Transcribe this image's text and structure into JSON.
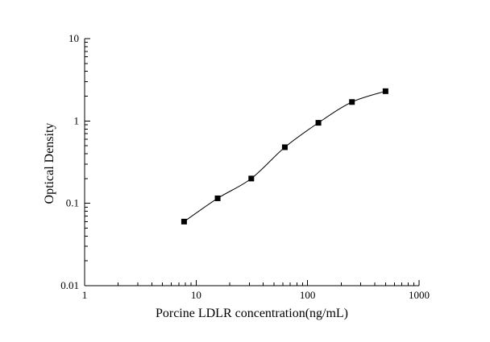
{
  "figure": {
    "background": "#ffffff"
  },
  "chart_data": {
    "type": "scatter",
    "title": "",
    "xlabel": "Porcine LDLR concentration(ng/mL)",
    "ylabel": "Optical Density",
    "xscale": "log",
    "yscale": "log",
    "xlim": [
      1,
      1000
    ],
    "ylim": [
      0.01,
      10
    ],
    "x": [
      7.8,
      15.6,
      31.25,
      62.5,
      125,
      250,
      500
    ],
    "y": [
      0.06,
      0.115,
      0.2,
      0.48,
      0.95,
      1.7,
      2.3
    ],
    "x_ticks": [
      1,
      10,
      100,
      1000
    ],
    "x_tick_labels": [
      "1",
      "10",
      "100",
      "1000"
    ],
    "y_ticks": [
      0.01,
      0.1,
      1,
      10
    ],
    "y_tick_labels": [
      "0.01",
      "0.1",
      "1",
      "10"
    ],
    "marker": "square",
    "marker_color": "#000000",
    "line_color": "#000000",
    "axis_color": "#000000",
    "grid": false,
    "legend": false
  }
}
